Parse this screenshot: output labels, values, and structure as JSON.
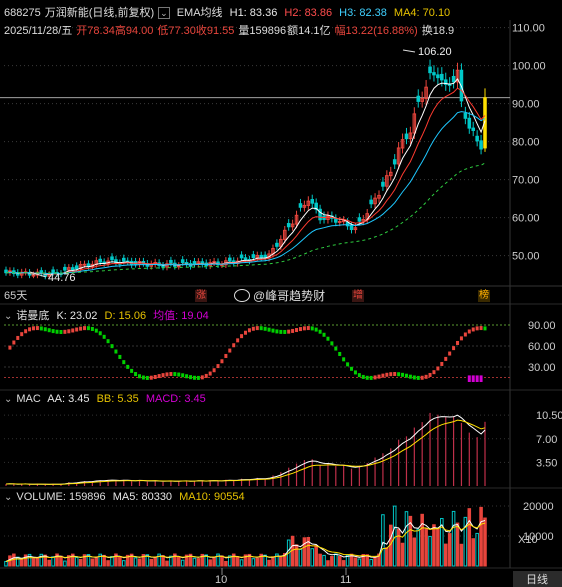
{
  "header": {
    "code": "688275",
    "name": "万润新能",
    "mode": "(日线,前复权)",
    "ema_label": "EMA均线",
    "h1": "H1: 83.36",
    "h2": "H2: 83.86",
    "h3": "H3: 82.38",
    "ma4": "MA4: 70.10",
    "date": "2025/11/28/五",
    "open": "开78.34",
    "high": "高94.00",
    "low": "低77.30",
    "close": "收91.55",
    "volume": "量159896",
    "amount": "额14.1亿",
    "amplitude": "幅13.22(16.88%)",
    "turnover": "换18.9"
  },
  "price_axis": [
    "110.00",
    "100.00",
    "90.00",
    "80.00",
    "70.00",
    "60.00",
    "50.00"
  ],
  "annotations": {
    "max_price": "106.20",
    "min_price": "44.76",
    "days": "65天"
  },
  "badges": {
    "zhang": "涨",
    "zeng": "增",
    "bang": "榜"
  },
  "watermark": "@峰哥趋势财",
  "indicator1": {
    "name": "诺曼底",
    "k": "K: 23.02",
    "d": "D: 15.06",
    "avg": "均值: 19.04",
    "axis": [
      "90.00",
      "60.00",
      "30.00"
    ]
  },
  "indicator2": {
    "name": "MAC",
    "aa": "AA: 3.45",
    "bb": "BB: 5.35",
    "macd": "MACD: 3.45",
    "axis": [
      "10.50",
      "7.00",
      "3.50"
    ]
  },
  "volume": {
    "label": "VOLUME: 159896",
    "ma5": "MA5: 80330",
    "ma10": "MA10: 90554",
    "axis": [
      "20000",
      "10000"
    ],
    "unit": "X10"
  },
  "time_axis": {
    "m10": "10",
    "m11": "11",
    "period": "日线"
  },
  "colors": {
    "up": "#e8453c",
    "down": "#00c8c8",
    "h1": "#ffffff",
    "h2": "#ff3b30",
    "h3": "#1ec8ff",
    "ma4": "#2ecc40",
    "k": "#e8453c",
    "d": "#00d000",
    "macd": "#d400d4",
    "bb": "#ffe000",
    "aa": "#ffffff"
  },
  "chart_data": {
    "type": "candlestick",
    "last_candle": {
      "date": "2025/11/28",
      "open": 78.34,
      "high": 94.0,
      "low": 77.3,
      "close": 91.55,
      "volume": 159896
    },
    "y_range": [
      42,
      112
    ],
    "max_marker": 106.2,
    "min_marker": 44.76
  }
}
